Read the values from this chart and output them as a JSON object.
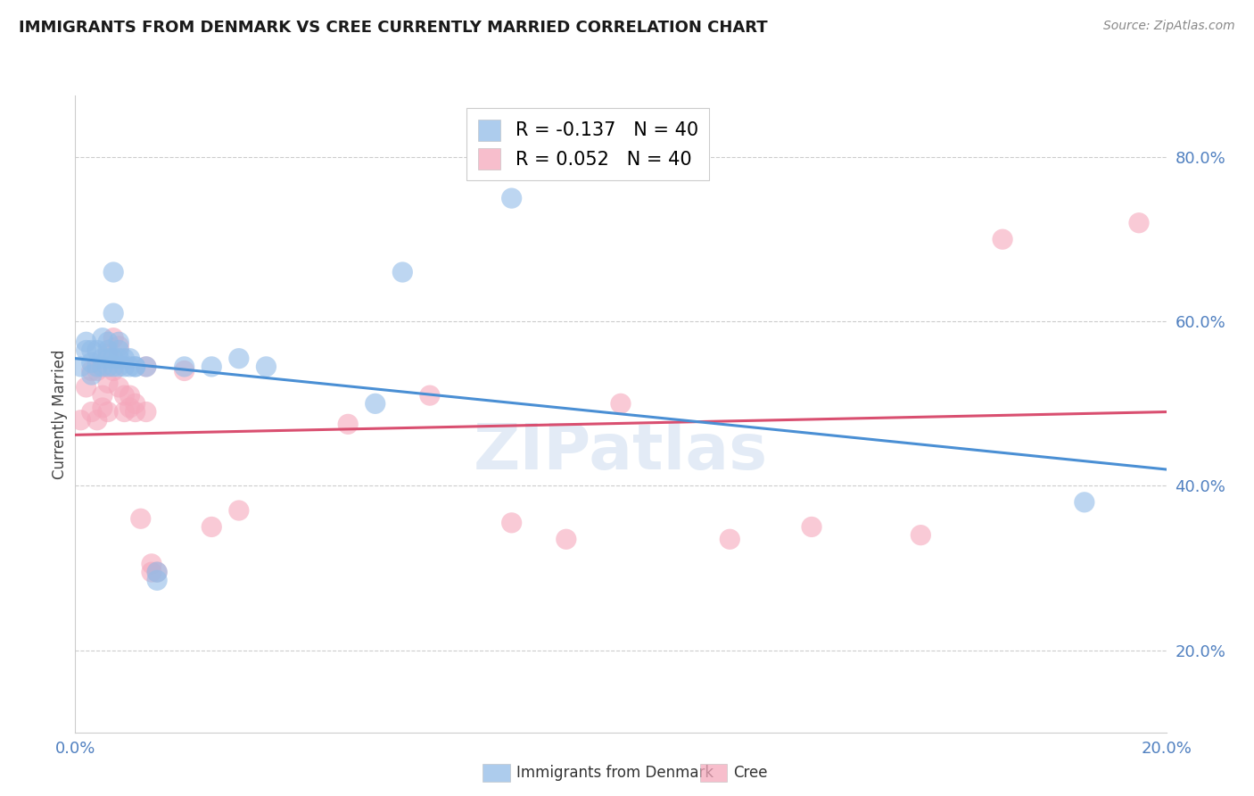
{
  "title": "IMMIGRANTS FROM DENMARK VS CREE CURRENTLY MARRIED CORRELATION CHART",
  "source": "Source: ZipAtlas.com",
  "ylabel": "Currently Married",
  "watermark": "ZIPatlas",
  "blue_color": "#92bce8",
  "pink_color": "#f5a8bc",
  "blue_line_color": "#4a8fd4",
  "pink_line_color": "#d94f70",
  "denmark_scatter_x": [
    0.001,
    0.002,
    0.002,
    0.003,
    0.003,
    0.003,
    0.004,
    0.004,
    0.005,
    0.005,
    0.005,
    0.006,
    0.006,
    0.006,
    0.006,
    0.007,
    0.007,
    0.007,
    0.007,
    0.008,
    0.008,
    0.008,
    0.008,
    0.009,
    0.009,
    0.01,
    0.01,
    0.011,
    0.011,
    0.013,
    0.015,
    0.015,
    0.02,
    0.025,
    0.03,
    0.035,
    0.055,
    0.06,
    0.08,
    0.185
  ],
  "denmark_scatter_y": [
    0.545,
    0.565,
    0.575,
    0.535,
    0.55,
    0.565,
    0.545,
    0.565,
    0.545,
    0.555,
    0.58,
    0.545,
    0.555,
    0.565,
    0.575,
    0.545,
    0.555,
    0.61,
    0.66,
    0.545,
    0.555,
    0.565,
    0.575,
    0.545,
    0.555,
    0.545,
    0.555,
    0.545,
    0.545,
    0.545,
    0.285,
    0.295,
    0.545,
    0.545,
    0.555,
    0.545,
    0.5,
    0.66,
    0.75,
    0.38
  ],
  "cree_scatter_x": [
    0.001,
    0.002,
    0.003,
    0.003,
    0.004,
    0.004,
    0.005,
    0.005,
    0.006,
    0.006,
    0.006,
    0.007,
    0.007,
    0.008,
    0.008,
    0.009,
    0.009,
    0.01,
    0.01,
    0.011,
    0.011,
    0.012,
    0.013,
    0.013,
    0.014,
    0.014,
    0.015,
    0.02,
    0.025,
    0.03,
    0.05,
    0.065,
    0.08,
    0.09,
    0.1,
    0.12,
    0.135,
    0.155,
    0.17,
    0.195
  ],
  "cree_scatter_y": [
    0.48,
    0.52,
    0.49,
    0.54,
    0.48,
    0.54,
    0.495,
    0.51,
    0.49,
    0.525,
    0.56,
    0.54,
    0.58,
    0.52,
    0.57,
    0.49,
    0.51,
    0.495,
    0.51,
    0.49,
    0.5,
    0.36,
    0.49,
    0.545,
    0.295,
    0.305,
    0.295,
    0.54,
    0.35,
    0.37,
    0.475,
    0.51,
    0.355,
    0.335,
    0.5,
    0.335,
    0.35,
    0.34,
    0.7,
    0.72
  ],
  "xlim": [
    0.0,
    0.2
  ],
  "ylim": [
    0.1,
    0.875
  ],
  "denmark_line_x0": 0.0,
  "denmark_line_y0": 0.555,
  "denmark_line_x1": 0.2,
  "denmark_line_y1": 0.42,
  "cree_line_x0": 0.0,
  "cree_line_y0": 0.462,
  "cree_line_x1": 0.2,
  "cree_line_y1": 0.49,
  "xtick_positions": [
    0.0,
    0.05,
    0.1,
    0.15,
    0.2
  ],
  "xtick_labels": [
    "0.0%",
    "",
    "",
    "",
    "20.0%"
  ],
  "ytick_positions": [
    0.2,
    0.4,
    0.6,
    0.8
  ],
  "ytick_labels": [
    "20.0%",
    "40.0%",
    "60.0%",
    "80.0%"
  ],
  "tick_color": "#5080c0",
  "grid_color": "#cccccc",
  "legend_label_blue": "R = -0.137   N = 40",
  "legend_label_pink": "R = 0.052   N = 40",
  "bottom_label_denmark": "Immigrants from Denmark",
  "bottom_label_cree": "Cree"
}
